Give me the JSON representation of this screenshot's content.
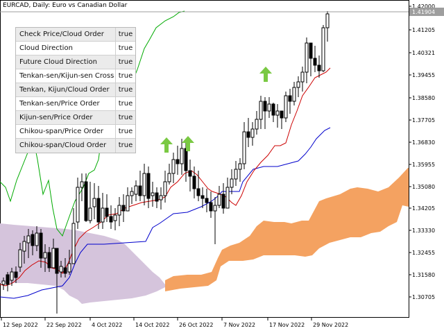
{
  "chart": {
    "title": "EURCAD, Daily:  Euro vs Canadian Dollar",
    "current_price": "1.41904",
    "price_axis": [
      "1.42000",
      "1.41205",
      "1.40321",
      "1.39455",
      "1.38580",
      "1.37705",
      "1.36830",
      "1.35955",
      "1.35080",
      "1.34205",
      "1.33330",
      "1.32455",
      "1.31580",
      "1.30705"
    ],
    "date_axis": [
      "12 Sep 2022",
      "22 Sep 2022",
      "4 Oct 2022",
      "14 Oct 2022",
      "26 Oct 2022",
      "7 Nov 2022",
      "17 Nov 2022",
      "29 Nov 2022"
    ]
  },
  "signal_panel": {
    "rows": [
      {
        "label": "Check Price/Cloud Order",
        "value": "true"
      },
      {
        "label": "Cloud Direction",
        "value": "true"
      },
      {
        "label": "Future Cloud Direction",
        "value": "true"
      },
      {
        "label": "Tenkan-sen/Kijun-sen Cross",
        "value": "true"
      },
      {
        "label": "Tenkan, Kijun/Cloud Order",
        "value": "true"
      },
      {
        "label": "Tenkan-sen/Price Order",
        "value": "true"
      },
      {
        "label": "Kijun-sen/Price Order",
        "value": "true"
      },
      {
        "label": "Chikou-span/Price Order",
        "value": "true"
      },
      {
        "label": "Chikou-span/Cloud Order",
        "value": "true"
      }
    ]
  },
  "colors": {
    "bearish_cloud": "#d5c4dc",
    "bullish_cloud": "#f4a261",
    "tenkan_sen": "#cc0000",
    "kijun_sen": "#0000cc",
    "chikou_span": "#00aa00",
    "signal_arrow": "#7ac943",
    "candle": "#000000",
    "current_price_tag": "#9e9e9e"
  },
  "signal_arrows": [
    "up-arrow-icon",
    "up-arrow-icon",
    "up-arrow-icon"
  ]
}
